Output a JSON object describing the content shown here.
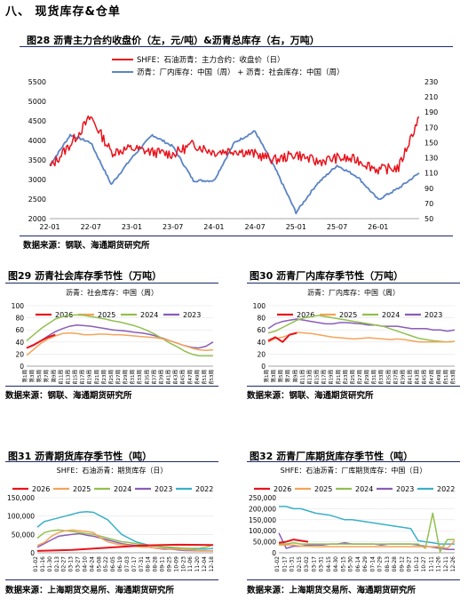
{
  "section": {
    "title": "八、  现货库存&仓单"
  },
  "fig28": {
    "title": "图28  沥青主力合约收盘价（左，元/吨）&沥青总库存（右，万吨）",
    "legend": [
      "SHFE：石油沥青：主力合约：收盘价（日）",
      "沥青：厂内库存：中国（周） + 沥青：社会库存：中国（周）"
    ],
    "source": "数据来源：钢联、海通期货研究所"
  },
  "fig29": {
    "title": "图29  沥青社会库存季节性（万吨）",
    "subtitle": "沥青：社会库存：中国（周）",
    "source": "数据来源：钢联、海通期货研究所"
  },
  "fig30": {
    "title": "图30  沥青厂内库存季节性（万吨）",
    "subtitle": "沥青：厂内库存：中国（周）",
    "source": "数据来源：钢联、海通期货研究所"
  },
  "fig31": {
    "title": "图31  沥青期货库存季节性（吨）",
    "subtitle": "SHFE：石油沥青：期货库存（日）",
    "source": "数据来源：上海期货交易所、海通期货研究所"
  },
  "fig32": {
    "title": "图32  沥青厂库期货库存季节性（吨）",
    "subtitle": "SHFE：石油沥青：厂库期货库存：中国（日）",
    "source": "数据来源：上海期货交易所、海通期货研究所"
  },
  "chart_data": [
    {
      "type": "line",
      "id": "fig28",
      "x": [
        "22-01",
        "22-04",
        "22-07",
        "22-10",
        "23-01",
        "23-04",
        "23-07",
        "23-10",
        "24-01",
        "24-04",
        "24-07",
        "24-10",
        "25-01",
        "25-04",
        "25-07",
        "25-10",
        "26-01",
        "26-02",
        "26-03"
      ],
      "xticks": [
        "22-01",
        "22-07",
        "23-01",
        "23-07",
        "24-01",
        "24-07",
        "25-01",
        "25-07",
        "26-01"
      ],
      "series": [
        {
          "name": "SHFE：石油沥青：主力合约：收盘价（日）",
          "axis": "left",
          "color": "#e8141c",
          "values": [
            3300,
            3900,
            4600,
            3700,
            3800,
            3700,
            3650,
            3900,
            3700,
            3750,
            3650,
            3500,
            3650,
            3450,
            3550,
            3500,
            3250,
            3300,
            4600
          ]
        },
        {
          "name": "沥青：厂内库存：中国（周） + 沥青：社会库存：中国（周）",
          "axis": "right",
          "color": "#5b84c4",
          "values": [
            120,
            160,
            150,
            95,
            130,
            160,
            145,
            100,
            100,
            150,
            165,
            115,
            58,
            95,
            120,
            105,
            75,
            90,
            110
          ]
        }
      ],
      "ylim_left": [
        2000,
        5500
      ],
      "yticks_left": [
        2000,
        2500,
        3000,
        3500,
        4000,
        4500,
        5000,
        5500
      ],
      "ylim_right": [
        50,
        230
      ],
      "yticks_right": [
        50,
        70,
        90,
        110,
        130,
        150,
        170,
        190,
        210,
        230
      ]
    },
    {
      "type": "line",
      "id": "fig29",
      "x_labels": [
        "第1周",
        "第3周",
        "第5周",
        "第7周",
        "第9周",
        "第11周",
        "第13周",
        "第15周",
        "第17周",
        "第19周",
        "第21周",
        "第23周",
        "第25周",
        "第27周",
        "第29周",
        "第31周",
        "第33周",
        "第35周",
        "第37周",
        "第39周",
        "第41周",
        "第43周",
        "第45周",
        "第47周",
        "第49周",
        "第51周",
        "第53周"
      ],
      "series": [
        {
          "name": "2026",
          "color": "#e8141c",
          "values": [
            30,
            35,
            42,
            48,
            52
          ]
        },
        {
          "name": "2025",
          "color": "#f5a35a",
          "values": [
            18,
            28,
            38,
            45,
            50,
            54,
            55,
            54,
            52,
            52,
            53,
            53,
            52,
            52,
            51,
            50,
            49,
            48,
            47,
            45,
            42,
            38,
            34,
            30,
            27,
            26,
            27
          ]
        },
        {
          "name": "2024",
          "color": "#92c050",
          "values": [
            42,
            52,
            62,
            70,
            78,
            82,
            84,
            85,
            84,
            82,
            80,
            78,
            75,
            73,
            70,
            67,
            63,
            58,
            52,
            45,
            38,
            32,
            25,
            20,
            17,
            17,
            17
          ]
        },
        {
          "name": "2023",
          "color": "#8a5db8",
          "values": [
            30,
            36,
            42,
            50,
            57,
            62,
            66,
            68,
            67,
            66,
            64,
            62,
            60,
            59,
            58,
            56,
            55,
            53,
            50,
            46,
            42,
            38,
            34,
            31,
            30,
            33,
            40
          ]
        }
      ],
      "ylim": [
        0,
        100
      ],
      "yticks": [
        0,
        20,
        40,
        60,
        80,
        100
      ]
    },
    {
      "type": "line",
      "id": "fig30",
      "x_labels": [
        "第1周",
        "第3周",
        "第5周",
        "第7周",
        "第9周",
        "第11周",
        "第13周",
        "第15周",
        "第17周",
        "第19周",
        "第21周",
        "第23周",
        "第25周",
        "第27周",
        "第29周",
        "第31周",
        "第33周",
        "第35周",
        "第37周",
        "第39周",
        "第41周",
        "第43周",
        "第45周",
        "第47周",
        "第49周",
        "第51周",
        "第53周"
      ],
      "series": [
        {
          "name": "2026",
          "color": "#e8141c",
          "values": [
            42,
            48,
            40,
            52,
            55
          ]
        },
        {
          "name": "2025",
          "color": "#f5a35a",
          "values": [
            40,
            46,
            48,
            52,
            56,
            55,
            54,
            52,
            50,
            48,
            47,
            46,
            45,
            46,
            47,
            46,
            45,
            44,
            45,
            44,
            42,
            40,
            40,
            40,
            40,
            40,
            41
          ]
        },
        {
          "name": "2024",
          "color": "#92c050",
          "values": [
            55,
            58,
            64,
            70,
            76,
            80,
            82,
            84,
            82,
            80,
            78,
            76,
            74,
            72,
            70,
            68,
            66,
            62,
            58,
            54,
            50,
            46,
            44,
            42,
            41,
            40,
            41
          ]
        },
        {
          "name": "2023",
          "color": "#8a5db8",
          "values": [
            62,
            70,
            74,
            76,
            78,
            76,
            74,
            72,
            70,
            70,
            72,
            72,
            71,
            70,
            68,
            68,
            66,
            66,
            66,
            64,
            62,
            62,
            62,
            60,
            60,
            58,
            60
          ]
        }
      ],
      "ylim": [
        0,
        100
      ],
      "yticks": [
        0,
        20,
        40,
        60,
        80,
        100
      ]
    },
    {
      "type": "line",
      "id": "fig31",
      "x_labels": [
        "01-02",
        "01-16",
        "01-30",
        "02-13",
        "02-27",
        "03-13",
        "03-27",
        "04-10",
        "04-24",
        "05-08",
        "05-22",
        "06-05",
        "06-19",
        "07-03",
        "07-17",
        "07-31",
        "08-14",
        "08-28",
        "09-11",
        "09-25",
        "10-09",
        "10-23",
        "11-06",
        "11-20",
        "12-04",
        "12-18"
      ],
      "series": [
        {
          "name": "2026",
          "color": "#e8141c",
          "values": [
            5000,
            8000,
            14000,
            20000,
            22000,
            21000
          ]
        },
        {
          "name": "2025",
          "color": "#f5a35a",
          "values": [
            20000,
            28000,
            45000,
            55000,
            60000,
            62000,
            60000,
            58000,
            55000,
            40000,
            30000,
            25000,
            22000,
            20000,
            18000,
            15000,
            15000,
            12000,
            12000,
            10000,
            10000,
            8000,
            8000,
            5000,
            5000,
            6000
          ]
        },
        {
          "name": "2024",
          "color": "#92c050",
          "values": [
            40000,
            55000,
            60000,
            62000,
            60000,
            58000,
            55000,
            52000,
            50000,
            45000,
            40000,
            35000,
            30000,
            28000,
            25000,
            22000,
            20000,
            18000,
            16000,
            15000,
            14000,
            12000,
            12000,
            12000,
            15000,
            22000
          ]
        },
        {
          "name": "2023",
          "color": "#8a5db8",
          "values": [
            15000,
            25000,
            35000,
            45000,
            48000,
            50000,
            52000,
            48000,
            45000,
            40000,
            35000,
            30000,
            25000,
            22000,
            20000,
            18000,
            15000,
            12000,
            10000,
            10000,
            8000,
            6000,
            6000,
            5000,
            5000,
            5000
          ]
        },
        {
          "name": "2022",
          "color": "#3ab0c8",
          "values": [
            70000,
            85000,
            90000,
            95000,
            100000,
            105000,
            110000,
            112000,
            110000,
            100000,
            90000,
            70000,
            50000,
            40000,
            30000,
            25000,
            20000,
            18000,
            15000,
            12000,
            12000,
            12000,
            10000,
            10000,
            10000,
            12000
          ]
        }
      ],
      "ylim": [
        0,
        150000
      ],
      "yticks": [
        0,
        50000,
        100000,
        150000
      ]
    },
    {
      "type": "line",
      "id": "fig32",
      "x_labels": [
        "01-02",
        "01-17",
        "01-31",
        "02-15",
        "03-02",
        "03-17",
        "03-31",
        "04-15",
        "04-30",
        "05-15",
        "05-30",
        "06-14",
        "06-29",
        "07-14",
        "07-29",
        "08-13",
        "08-28",
        "09-12",
        "09-27",
        "10-12",
        "10-27",
        "11-11",
        "11-26",
        "12-11",
        "12-26"
      ],
      "series": [
        {
          "name": "2026",
          "color": "#e8141c",
          "values": [
            45000,
            50000,
            60000,
            55000,
            50000
          ]
        },
        {
          "name": "2025",
          "color": "#f5a35a",
          "values": [
            35000,
            35000,
            35000,
            30000,
            30000,
            28000,
            28000,
            28000,
            28000,
            28000,
            28000,
            28000,
            28000,
            28000,
            28000,
            28000,
            28000,
            28000,
            28000,
            28000,
            28000,
            28000,
            28000,
            20000,
            55000
          ]
        },
        {
          "name": "2024",
          "color": "#92c050",
          "values": [
            40000,
            40000,
            45000,
            40000,
            40000,
            40000,
            40000,
            40000,
            40000,
            40000,
            40000,
            40000,
            40000,
            40000,
            40000,
            40000,
            40000,
            40000,
            40000,
            40000,
            20000,
            180000,
            5000,
            60000,
            60000
          ]
        },
        {
          "name": "2023",
          "color": "#8a5db8",
          "values": [
            90000,
            20000,
            30000,
            30000,
            35000,
            35000,
            35000,
            40000,
            40000,
            45000,
            40000,
            40000,
            40000,
            40000,
            35000,
            40000,
            40000,
            40000,
            40000,
            35000,
            30000,
            25000,
            20000,
            15000,
            15000
          ]
        },
        {
          "name": "2022",
          "color": "#3ab0c8",
          "values": [
            210000,
            210000,
            200000,
            200000,
            190000,
            180000,
            175000,
            170000,
            160000,
            150000,
            150000,
            145000,
            140000,
            135000,
            130000,
            125000,
            120000,
            115000,
            110000,
            55000,
            50000,
            45000,
            40000,
            40000,
            40000
          ]
        }
      ],
      "ylim": [
        0,
        250000
      ],
      "yticks": [
        0,
        50000,
        100000,
        150000,
        200000,
        250000
      ]
    }
  ]
}
